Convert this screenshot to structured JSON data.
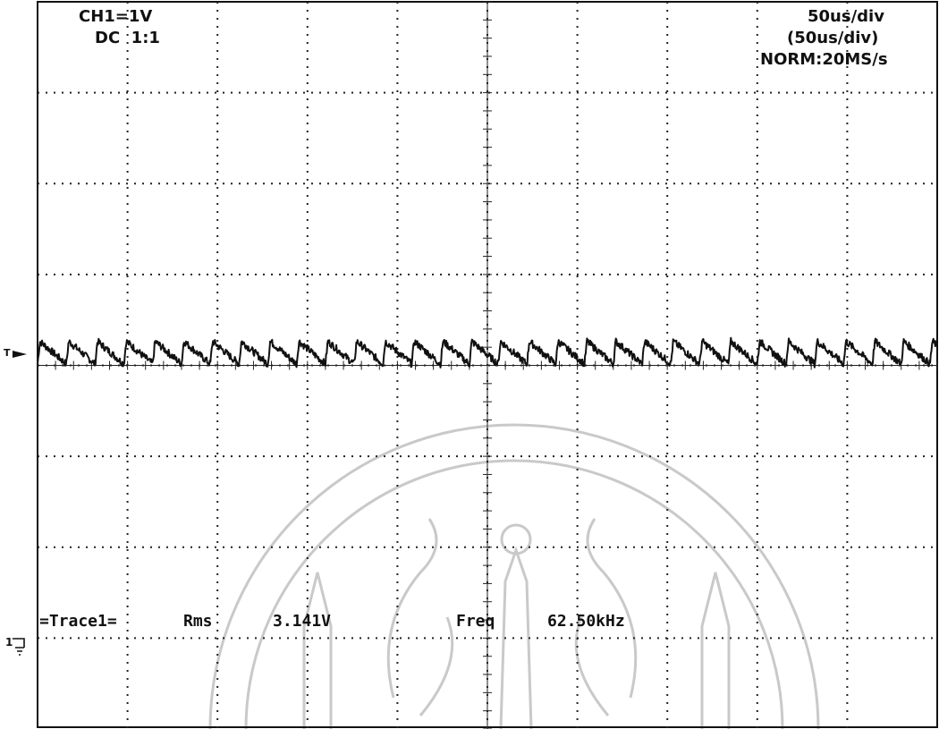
{
  "channel": {
    "scale": "CH1=1V",
    "coupling": "DC  1:1"
  },
  "timebase": {
    "main": "50us/div",
    "zoom": "(50us/div)",
    "mode": "NORM:20MS/s"
  },
  "markers": {
    "trigger": "T",
    "ground": "1"
  },
  "measurement": {
    "trace": "=Trace1=",
    "rms_label": "Rms",
    "rms_value": "3.141V",
    "freq_label": "Freq",
    "freq_value": "62.50kHz"
  },
  "chart_data": {
    "type": "line",
    "x_unit": "us",
    "y_unit": "V",
    "time_per_div_us": 50,
    "volts_per_div": 1,
    "x_divisions": 10,
    "y_divisions": 8,
    "xlim_us": [
      0,
      500
    ],
    "ylim_volts_from_ground": [
      -1,
      7
    ],
    "grid": true,
    "series": [
      {
        "waveform": "ripple",
        "dc_level_v": 3.14,
        "ripple_pp_v": 0.25,
        "period_us": 16,
        "frequency_khz": 62.5
      }
    ]
  }
}
